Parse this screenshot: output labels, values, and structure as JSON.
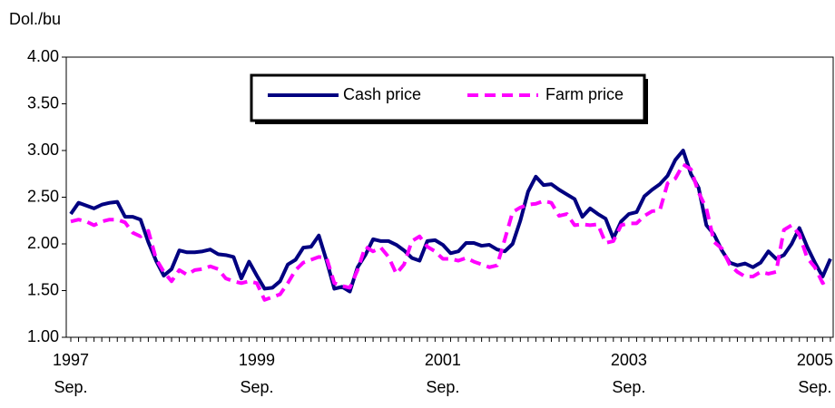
{
  "chart_data": {
    "type": "line",
    "y_label": "Dol./bu",
    "ylim": [
      1,
      4
    ],
    "yticks": [
      {
        "value": 1,
        "label": "1.00"
      },
      {
        "value": 1.5,
        "label": "1.50"
      },
      {
        "value": 2,
        "label": "2.00"
      },
      {
        "value": 2.5,
        "label": "2.50"
      },
      {
        "value": 3,
        "label": "3.00"
      },
      {
        "value": 3.5,
        "label": "3.50"
      },
      {
        "value": 4,
        "label": "4.00"
      }
    ],
    "grid": false,
    "legend": "top-center",
    "categories": [
      [
        "1997",
        "Sep."
      ],
      null,
      null,
      null,
      null,
      null,
      null,
      null,
      null,
      null,
      null,
      null,
      null,
      null,
      null,
      null,
      null,
      null,
      null,
      null,
      null,
      null,
      null,
      null,
      [
        "1999",
        "Sep."
      ],
      null,
      null,
      null,
      null,
      null,
      null,
      null,
      null,
      null,
      null,
      null,
      null,
      null,
      null,
      null,
      null,
      null,
      null,
      null,
      null,
      null,
      null,
      null,
      [
        "2001",
        "Sep."
      ],
      null,
      null,
      null,
      null,
      null,
      null,
      null,
      null,
      null,
      null,
      null,
      null,
      null,
      null,
      null,
      null,
      null,
      null,
      null,
      null,
      null,
      null,
      null,
      [
        "2003",
        "Sep."
      ],
      null,
      null,
      null,
      null,
      null,
      null,
      null,
      null,
      null,
      null,
      null,
      null,
      null,
      null,
      null,
      null,
      null,
      null,
      null,
      null,
      null,
      null,
      null,
      [
        "2005",
        "Sep."
      ],
      null,
      null
    ],
    "series": [
      {
        "name": "Cash price",
        "color": "#000080",
        "dash": false,
        "values": [
          2.32,
          2.44,
          2.41,
          2.38,
          2.42,
          2.44,
          2.45,
          2.29,
          2.29,
          2.26,
          2.02,
          1.82,
          1.66,
          1.73,
          1.93,
          1.91,
          1.91,
          1.92,
          1.94,
          1.89,
          1.88,
          1.86,
          1.63,
          1.81,
          1.66,
          1.52,
          1.53,
          1.6,
          1.78,
          1.83,
          1.96,
          1.97,
          2.09,
          1.82,
          1.52,
          1.54,
          1.49,
          1.75,
          1.88,
          2.05,
          2.03,
          2.03,
          1.99,
          1.93,
          1.85,
          1.82,
          2.03,
          2.04,
          1.99,
          1.9,
          1.92,
          2.01,
          2.01,
          1.98,
          1.99,
          1.94,
          1.92,
          2.0,
          2.25,
          2.56,
          2.72,
          2.63,
          2.64,
          2.58,
          2.53,
          2.48,
          2.29,
          2.38,
          2.32,
          2.27,
          2.06,
          2.24,
          2.32,
          2.34,
          2.51,
          2.58,
          2.64,
          2.73,
          2.9,
          3.0,
          2.75,
          2.6,
          2.2,
          2.1,
          1.93,
          1.8,
          1.77,
          1.79,
          1.75,
          1.8,
          1.92,
          1.84,
          1.88,
          2.0,
          2.17,
          1.97,
          1.8,
          1.65,
          1.84
        ]
      },
      {
        "name": "Farm price",
        "color": "#ff00ff",
        "dash": true,
        "values": [
          2.24,
          2.26,
          2.24,
          2.2,
          2.24,
          2.26,
          2.26,
          2.23,
          2.12,
          2.08,
          2.14,
          1.84,
          1.7,
          1.6,
          1.72,
          1.67,
          1.72,
          1.73,
          1.76,
          1.73,
          1.63,
          1.6,
          1.58,
          1.6,
          1.58,
          1.4,
          1.43,
          1.46,
          1.58,
          1.72,
          1.8,
          1.83,
          1.86,
          1.85,
          1.58,
          1.55,
          1.53,
          1.72,
          1.97,
          1.92,
          1.96,
          1.86,
          1.68,
          1.78,
          2.03,
          2.08,
          1.97,
          1.92,
          1.84,
          1.84,
          1.82,
          1.85,
          1.81,
          1.78,
          1.75,
          1.77,
          2.05,
          2.34,
          2.39,
          2.42,
          2.43,
          2.46,
          2.44,
          2.3,
          2.32,
          2.2,
          2.21,
          2.2,
          2.21,
          2.01,
          2.03,
          2.2,
          2.22,
          2.22,
          2.3,
          2.35,
          2.36,
          2.65,
          2.7,
          2.85,
          2.8,
          2.55,
          2.38,
          2.02,
          1.95,
          1.78,
          1.7,
          1.65,
          1.65,
          1.7,
          1.68,
          1.7,
          2.15,
          2.2,
          2.1,
          1.85,
          1.75,
          1.58,
          1.62
        ]
      }
    ]
  }
}
